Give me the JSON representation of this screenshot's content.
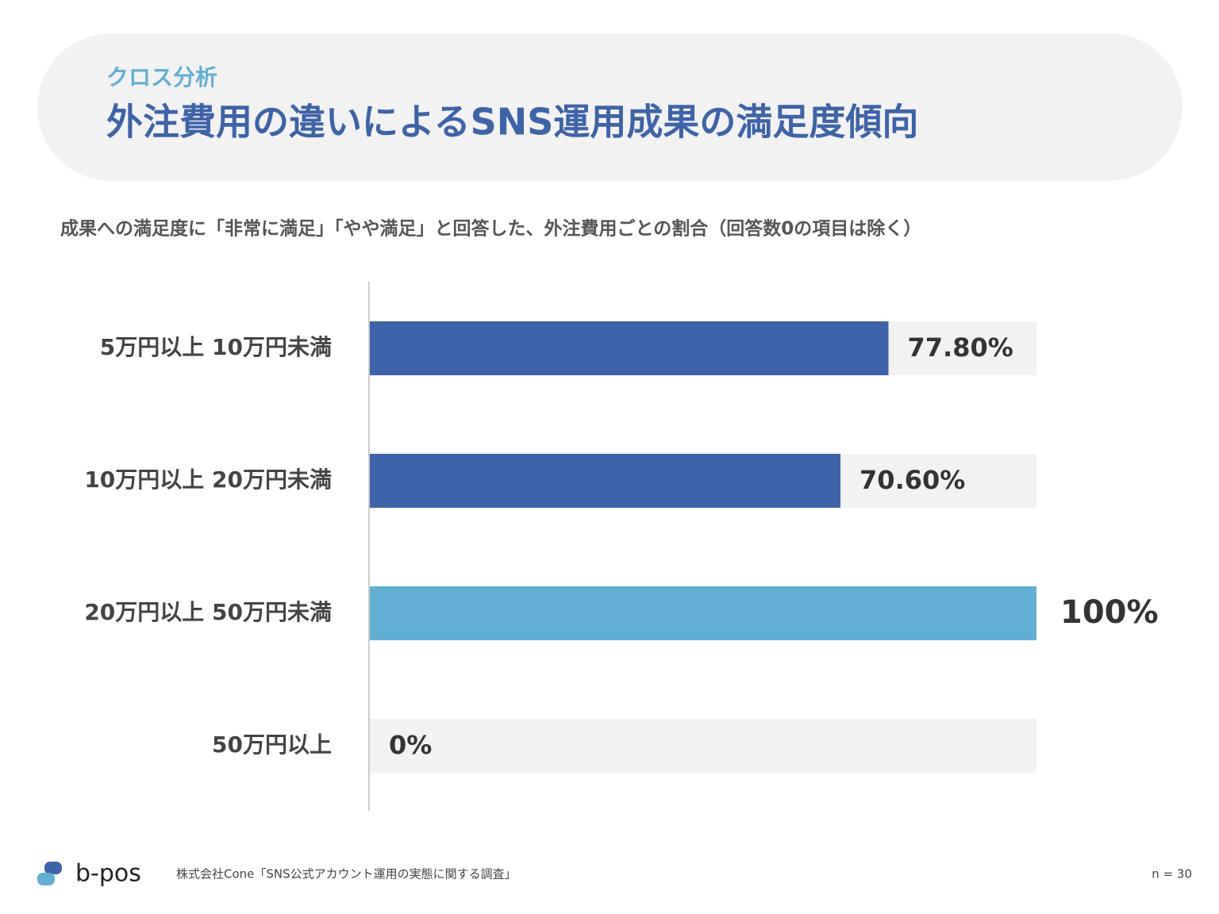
{
  "header": {
    "kicker": "クロス分析",
    "title": "外注費用の違いによるSNS運用成果の満足度傾向"
  },
  "chart_data": {
    "type": "bar",
    "orientation": "horizontal",
    "title": "成果への満足度に「非常に満足」「やや満足」と回答した、外注費用ごとの割合（回答数0の項目は除く）",
    "categories": [
      "5万円以上 10万円未満",
      "10万円以上 20万円未満",
      "20万円以上 50万円未満",
      "50万円以上"
    ],
    "values": [
      77.8,
      70.6,
      100,
      0
    ],
    "value_labels": [
      "77.80%",
      "70.60%",
      "100%",
      "0%"
    ],
    "colors": [
      "#3d63a8",
      "#3d63a8",
      "#62afd3",
      "#3d63a8"
    ],
    "track_color": "#f2f2f2",
    "xlim": [
      0,
      100
    ]
  },
  "footer": {
    "logo": "b-pos",
    "source": "株式会社Cone「SNS公式アカウント運用の実態に関する調査」",
    "n": "n = 30"
  }
}
